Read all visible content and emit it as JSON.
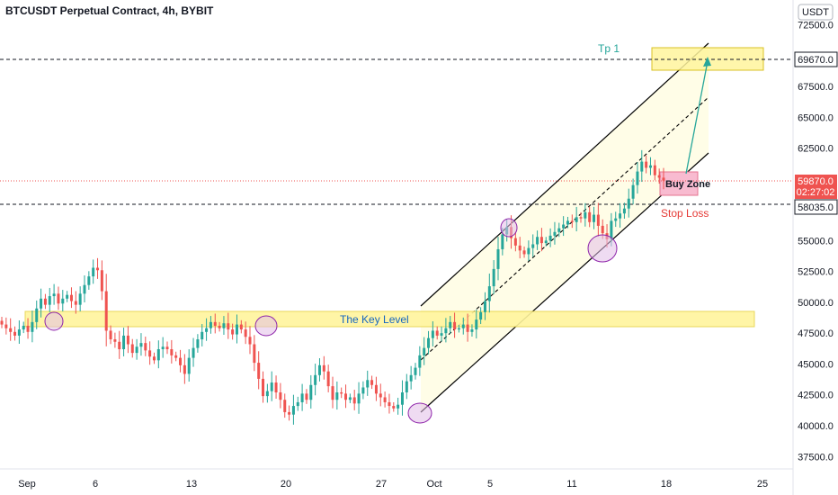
{
  "header": {
    "title": "BTCUSDT Perpetual Contract, 4h, BYBIT"
  },
  "axis": {
    "currency": "USDT",
    "countdown": "02:27:02"
  },
  "colors": {
    "up": "#26a69a",
    "down": "#ef5350",
    "channel": "#000000",
    "zone_fill": "#fff59d",
    "channel_fill": "#fffde7",
    "buy_zone": "#f8bbd0",
    "circle_fill": "#e1bee7",
    "circle_stroke": "#8e24aa",
    "tp_text": "#26a69a",
    "stop_text": "#e53935",
    "key_text": "#1565c0",
    "price_line": "#ef5350"
  },
  "chart_data": {
    "type": "candlestick",
    "title": "BTCUSDT Perpetual Contract, 4h, BYBIT",
    "ylim": [
      36500,
      74500
    ],
    "y_ticks": [
      37500,
      40000,
      42500,
      45000,
      47500,
      50000,
      52500,
      55000,
      57500,
      60000,
      62500,
      65000,
      67500,
      70000,
      72500
    ],
    "y_tick_labels": [
      "37500.0",
      "40000.0",
      "42500.0",
      "45000.0",
      "47500.0",
      "50000.0",
      "52500.0",
      "55000.0",
      "57500.0",
      "60000.0",
      "62500.0",
      "65000.0",
      "67500.0",
      "70000.0",
      "72500.0"
    ],
    "x_ticks": [
      "Sep",
      "6",
      "13",
      "20",
      "27",
      "Oct",
      "5",
      "11",
      "18",
      "25"
    ],
    "price_labels": {
      "tp": {
        "value": 69670,
        "label": "69670.0"
      },
      "last": {
        "value": 59870,
        "label": "59870.0"
      },
      "stop": {
        "value": 58035,
        "label": "58035.0"
      }
    },
    "annotations": {
      "tp": "Tp 1",
      "buy_zone": "Buy Zone",
      "stop_loss": "Stop Loss",
      "key_level": "The Key Level"
    },
    "key_level_zone": [
      48300,
      49500
    ],
    "tp_zone": [
      68500,
      70300
    ],
    "buy_zone_range": [
      58600,
      60800
    ],
    "closes": [
      48200,
      47900,
      47600,
      47300,
      47800,
      48100,
      47600,
      48400,
      49500,
      50300,
      49800,
      50500,
      50700,
      49900,
      50300,
      50600,
      50100,
      49800,
      50700,
      51400,
      52100,
      52800,
      52600,
      50900,
      47700,
      47000,
      46800,
      46200,
      47300,
      46600,
      45900,
      46400,
      46700,
      46100,
      45600,
      45300,
      46200,
      46400,
      46200,
      45700,
      45500,
      44900,
      44200,
      45500,
      46300,
      47000,
      47600,
      47900,
      48400,
      48100,
      47900,
      48300,
      47800,
      47400,
      48200,
      47800,
      47200,
      46600,
      45100,
      43800,
      42400,
      42800,
      43500,
      42700,
      42100,
      41100,
      40900,
      41600,
      41900,
      42600,
      42100,
      43300,
      44100,
      44900,
      44400,
      43200,
      42100,
      42700,
      42600,
      42100,
      42300,
      41800,
      42600,
      43100,
      43700,
      43300,
      42600,
      42300,
      41900,
      41600,
      41400,
      41700,
      42700,
      43600,
      44100,
      44700,
      45700,
      46300,
      47100,
      47700,
      47300,
      47500,
      47900,
      48400,
      47800,
      47900,
      48200,
      47600,
      47800,
      48600,
      49200,
      50100,
      51300,
      52700,
      54300,
      55500,
      56100,
      55200,
      54600,
      54200,
      53900,
      54400,
      54700,
      55300,
      54800,
      55000,
      55400,
      55700,
      56000,
      56300,
      56600,
      56500,
      56900,
      56800,
      57300,
      56500,
      57100,
      56200,
      55600,
      55100,
      56600,
      56800,
      57200,
      57600,
      58400,
      59500,
      60600,
      61400,
      60900,
      61100,
      60300,
      60100,
      59870
    ]
  }
}
